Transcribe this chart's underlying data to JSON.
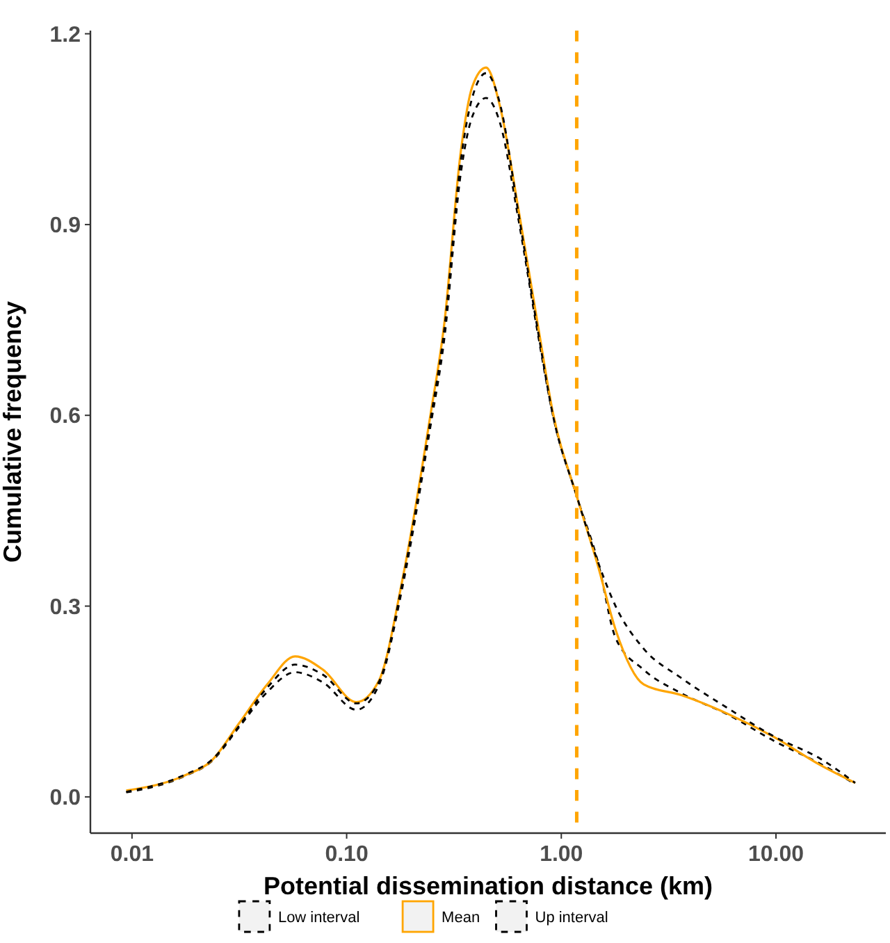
{
  "chart_data": {
    "type": "line",
    "xlabel": "Potential dissemination distance (km)",
    "ylabel": "Cumulative frequency",
    "log": "x",
    "xlim": [
      0.0064,
      32.5
    ],
    "ylim": [
      -0.057,
      1.205
    ],
    "xticks": [
      0.01,
      {
        "value": 0.1,
        "label": "0.10"
      },
      {
        "value": 1,
        "label": "1.00"
      },
      {
        "value": 10,
        "label": "10.00"
      }
    ],
    "yticks": [
      {
        "value": 0,
        "label": "0.0"
      },
      0.3,
      0.6,
      0.9,
      1.2
    ],
    "grid": false,
    "legend": "bottom",
    "x": [
      0.0094,
      0.0174,
      0.0235,
      0.0316,
      0.0427,
      0.0575,
      0.0776,
      0.111,
      0.141,
      0.182,
      0.245,
      0.285,
      0.34,
      0.385,
      0.446,
      0.518,
      0.63,
      0.776,
      0.914,
      1.18,
      1.48,
      1.79,
      2.42,
      3.62,
      5.93,
      9.8,
      16.1,
      23.4
    ],
    "series": [
      {
        "name": "Low interval",
        "color": "#000000",
        "line_style": "dashed",
        "values": [
          0.007,
          0.032,
          0.056,
          0.11,
          0.165,
          0.196,
          0.18,
          0.137,
          0.175,
          0.33,
          0.58,
          0.72,
          0.98,
          1.07,
          1.099,
          1.06,
          0.91,
          0.73,
          0.6,
          0.473,
          0.37,
          0.25,
          0.2,
          0.163,
          0.13,
          0.088,
          0.052,
          0.02
        ]
      },
      {
        "name": "Mean",
        "color": "#ffa500",
        "line_style": "solid",
        "values": [
          0.01,
          0.033,
          0.057,
          0.116,
          0.177,
          0.221,
          0.2,
          0.149,
          0.182,
          0.342,
          0.598,
          0.744,
          1.014,
          1.117,
          1.147,
          1.086,
          0.926,
          0.744,
          0.604,
          0.473,
          0.364,
          0.263,
          0.177,
          0.16,
          0.131,
          0.094,
          0.05,
          0.022
        ]
      },
      {
        "name": "Up interval",
        "color": "#000000",
        "line_style": "dashed",
        "values": [
          0.008,
          0.034,
          0.058,
          0.112,
          0.172,
          0.208,
          0.192,
          0.147,
          0.18,
          0.338,
          0.59,
          0.735,
          1.0,
          1.1,
          1.138,
          1.09,
          0.92,
          0.735,
          0.6,
          0.473,
          0.37,
          0.3,
          0.233,
          0.187,
          0.14,
          0.095,
          0.06,
          0.022
        ]
      }
    ],
    "ref_lines": [
      {
        "axis": "x",
        "value": 1.18,
        "color": "#ffa500",
        "line_style": "dashed"
      }
    ]
  }
}
